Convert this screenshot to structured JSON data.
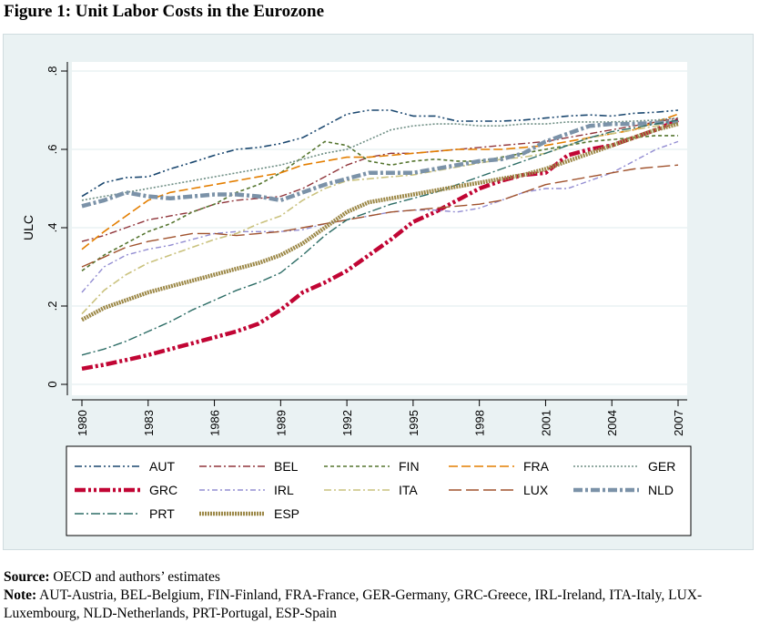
{
  "figure_title": "Figure 1: Unit Labor Costs in the Eurozone",
  "chart_data": {
    "type": "line",
    "title": "",
    "xlabel": "",
    "ylabel": "ULC",
    "ylim": [
      0,
      0.8
    ],
    "xlim": [
      1980,
      2007
    ],
    "y_ticks": [
      {
        "value": 0,
        "label": "0"
      },
      {
        "value": 0.2,
        "label": ".2"
      },
      {
        "value": 0.4,
        "label": ".4"
      },
      {
        "value": 0.6,
        "label": ".6"
      },
      {
        "value": 0.8,
        "label": ".8"
      }
    ],
    "x_ticks": [
      "1980",
      "1983",
      "1986",
      "1989",
      "1992",
      "1995",
      "1998",
      "2001",
      "2004",
      "2007"
    ],
    "grid": true,
    "legend_position": "bottom",
    "x": [
      1980,
      1981,
      1982,
      1983,
      1984,
      1985,
      1986,
      1987,
      1988,
      1989,
      1990,
      1991,
      1992,
      1993,
      1994,
      1995,
      1996,
      1997,
      1998,
      1999,
      2000,
      2001,
      2002,
      2003,
      2004,
      2005,
      2006,
      2007
    ],
    "series": [
      {
        "name": "AUT",
        "color": "#1a476f",
        "dash": "8,3,2,3,2,3",
        "width": 1.6,
        "values": [
          0.48,
          0.515,
          0.528,
          0.53,
          0.55,
          0.567,
          0.585,
          0.6,
          0.605,
          0.615,
          0.63,
          0.66,
          0.69,
          0.7,
          0.7,
          0.685,
          0.685,
          0.672,
          0.672,
          0.672,
          0.675,
          0.68,
          0.685,
          0.688,
          0.685,
          0.692,
          0.695,
          0.7
        ]
      },
      {
        "name": "BEL",
        "color": "#90353b",
        "dash": "8,3,2,3",
        "width": 1.4,
        "values": [
          0.365,
          0.38,
          0.4,
          0.42,
          0.43,
          0.44,
          0.46,
          0.47,
          0.475,
          0.48,
          0.5,
          0.53,
          0.56,
          0.58,
          0.59,
          0.59,
          0.595,
          0.6,
          0.605,
          0.61,
          0.615,
          0.62,
          0.63,
          0.64,
          0.65,
          0.66,
          0.67,
          0.68
        ]
      },
      {
        "name": "FIN",
        "color": "#55752f",
        "dash": "4,3",
        "width": 1.6,
        "values": [
          0.29,
          0.33,
          0.36,
          0.39,
          0.41,
          0.44,
          0.46,
          0.49,
          0.51,
          0.54,
          0.58,
          0.62,
          0.61,
          0.57,
          0.56,
          0.57,
          0.575,
          0.57,
          0.57,
          0.58,
          0.59,
          0.6,
          0.61,
          0.62,
          0.625,
          0.63,
          0.635,
          0.635
        ]
      },
      {
        "name": "FRA",
        "color": "#e37e00",
        "dash": "10,4",
        "width": 1.6,
        "values": [
          0.345,
          0.39,
          0.43,
          0.47,
          0.49,
          0.5,
          0.51,
          0.52,
          0.53,
          0.54,
          0.56,
          0.57,
          0.58,
          0.58,
          0.585,
          0.59,
          0.595,
          0.6,
          0.6,
          0.6,
          0.605,
          0.61,
          0.62,
          0.63,
          0.64,
          0.65,
          0.67,
          0.69
        ]
      },
      {
        "name": "GER",
        "color": "#6e8e84",
        "dash": "2,2",
        "width": 1.6,
        "values": [
          0.47,
          0.48,
          0.49,
          0.5,
          0.51,
          0.52,
          0.53,
          0.54,
          0.55,
          0.56,
          0.575,
          0.59,
          0.6,
          0.625,
          0.65,
          0.66,
          0.665,
          0.665,
          0.66,
          0.66,
          0.665,
          0.665,
          0.67,
          0.67,
          0.67,
          0.672,
          0.675,
          0.68
        ]
      },
      {
        "name": "GRC",
        "color": "#c10534",
        "dash": "12,3,3,3,3,3",
        "width": 4.5,
        "values": [
          0.04,
          0.05,
          0.062,
          0.075,
          0.09,
          0.105,
          0.12,
          0.135,
          0.155,
          0.19,
          0.235,
          0.26,
          0.29,
          0.33,
          0.37,
          0.415,
          0.44,
          0.47,
          0.5,
          0.52,
          0.535,
          0.54,
          0.585,
          0.6,
          0.61,
          0.63,
          0.65,
          0.675
        ]
      },
      {
        "name": "IRL",
        "color": "#938dd2",
        "dash": "6,3,2,3",
        "width": 1.4,
        "values": [
          0.235,
          0.3,
          0.33,
          0.345,
          0.355,
          0.37,
          0.385,
          0.39,
          0.39,
          0.39,
          0.395,
          0.41,
          0.42,
          0.43,
          0.44,
          0.445,
          0.445,
          0.44,
          0.45,
          0.47,
          0.49,
          0.5,
          0.5,
          0.52,
          0.54,
          0.57,
          0.6,
          0.62
        ]
      },
      {
        "name": "ITA",
        "color": "#cac27e",
        "dash": "8,3,2,3",
        "width": 1.6,
        "values": [
          0.18,
          0.24,
          0.28,
          0.31,
          0.33,
          0.35,
          0.37,
          0.385,
          0.41,
          0.43,
          0.47,
          0.5,
          0.52,
          0.525,
          0.53,
          0.535,
          0.545,
          0.555,
          0.565,
          0.575,
          0.58,
          0.59,
          0.61,
          0.63,
          0.64,
          0.65,
          0.66,
          0.665
        ]
      },
      {
        "name": "LUX",
        "color": "#a0522d",
        "dash": "14,5",
        "width": 1.4,
        "values": [
          0.3,
          0.325,
          0.35,
          0.365,
          0.375,
          0.385,
          0.385,
          0.38,
          0.385,
          0.39,
          0.4,
          0.41,
          0.42,
          0.43,
          0.44,
          0.445,
          0.45,
          0.455,
          0.46,
          0.47,
          0.49,
          0.51,
          0.52,
          0.53,
          0.54,
          0.55,
          0.555,
          0.56
        ]
      },
      {
        "name": "NLD",
        "color": "#7b92a8",
        "dash": "10,3,3,3",
        "width": 4.5,
        "values": [
          0.455,
          0.47,
          0.49,
          0.48,
          0.475,
          0.48,
          0.485,
          0.485,
          0.48,
          0.47,
          0.49,
          0.51,
          0.525,
          0.54,
          0.54,
          0.54,
          0.55,
          0.56,
          0.57,
          0.575,
          0.59,
          0.62,
          0.64,
          0.66,
          0.665,
          0.665,
          0.668,
          0.67
        ]
      },
      {
        "name": "PRT",
        "color": "#2d6d66",
        "dash": "10,3,2,3",
        "width": 1.4,
        "values": [
          0.075,
          0.09,
          0.11,
          0.135,
          0.16,
          0.19,
          0.215,
          0.24,
          0.26,
          0.285,
          0.33,
          0.38,
          0.42,
          0.44,
          0.46,
          0.475,
          0.49,
          0.51,
          0.53,
          0.55,
          0.57,
          0.59,
          0.61,
          0.63,
          0.645,
          0.655,
          0.665,
          0.675
        ]
      },
      {
        "name": "ESP",
        "color": "#9c8847",
        "dash": "2,1",
        "width": 4.5,
        "values": [
          0.165,
          0.195,
          0.215,
          0.235,
          0.25,
          0.265,
          0.28,
          0.295,
          0.31,
          0.33,
          0.36,
          0.4,
          0.44,
          0.465,
          0.475,
          0.485,
          0.495,
          0.505,
          0.515,
          0.525,
          0.535,
          0.55,
          0.57,
          0.59,
          0.61,
          0.63,
          0.65,
          0.665
        ]
      }
    ]
  },
  "notes": {
    "source_label": "Source:",
    "source_text": " OECD and authors’ estimates",
    "note_label": "Note:",
    "note_text": " AUT-Austria, BEL-Belgium, FIN-Finland, FRA-France, GER-Germany, GRC-Greece, IRL-Ireland, ITA-Italy, LUX-Luxembourg, NLD-Netherlands, PRT-Portugal, ESP-Spain"
  }
}
